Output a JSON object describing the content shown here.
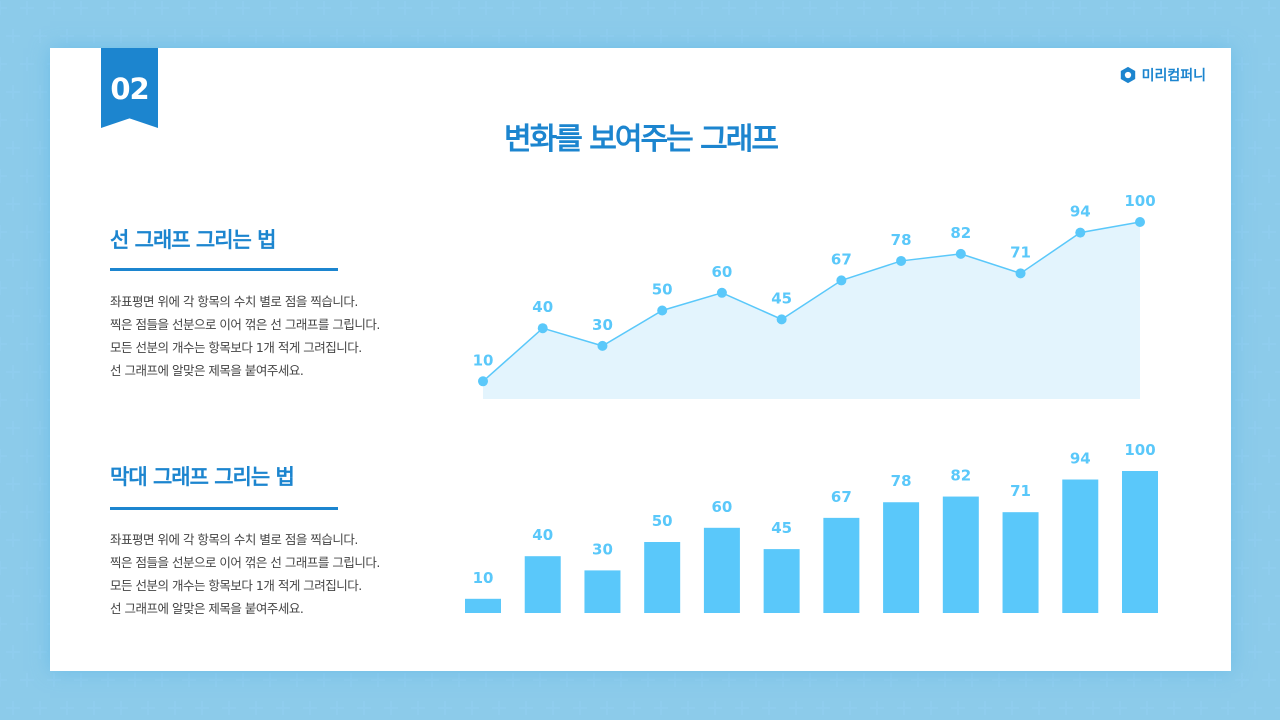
{
  "badge": "02",
  "logo": {
    "text": "미리컴퍼니",
    "icon": "hexagon-logo-icon"
  },
  "title": "변화를 보여주는 그래프",
  "sections": [
    {
      "heading": "선 그래프 그리는 법",
      "lines": [
        "좌표평면 위에 각 항목의 수치 별로 점을 찍습니다.",
        "찍은 점들을 선분으로 이어 꺾은 선 그래프를 그립니다.",
        "모든 선분의 개수는 항목보다 1개 적게 그려집니다.",
        "선 그래프에 알맞은 제목을 붙여주세요."
      ]
    },
    {
      "heading": "막대 그래프 그리는 법",
      "lines": [
        "좌표평면 위에 각 항목의 수치 별로 점을 찍습니다.",
        "찍은 점들을 선분으로 이어 꺾은 선 그래프를 그립니다.",
        "모든 선분의 개수는 항목보다 1개 적게 그려집니다.",
        "선 그래프에 알맞은 제목을 붙여주세요."
      ]
    }
  ],
  "chart_data": [
    {
      "type": "line",
      "values": [
        10,
        40,
        30,
        50,
        60,
        45,
        67,
        78,
        82,
        71,
        94,
        100
      ],
      "ylim": [
        0,
        100
      ],
      "grid": false,
      "area_fill": true,
      "color": "#5ac8fa",
      "fill": "#e3f4fd"
    },
    {
      "type": "bar",
      "values": [
        10,
        40,
        30,
        50,
        60,
        45,
        67,
        78,
        82,
        71,
        94,
        100
      ],
      "ylim": [
        0,
        100
      ],
      "grid": false,
      "color": "#5ac8fa"
    }
  ],
  "colors": {
    "accent": "#1c85cf",
    "chart": "#5ac8fa",
    "background": "#c4e8fb"
  }
}
